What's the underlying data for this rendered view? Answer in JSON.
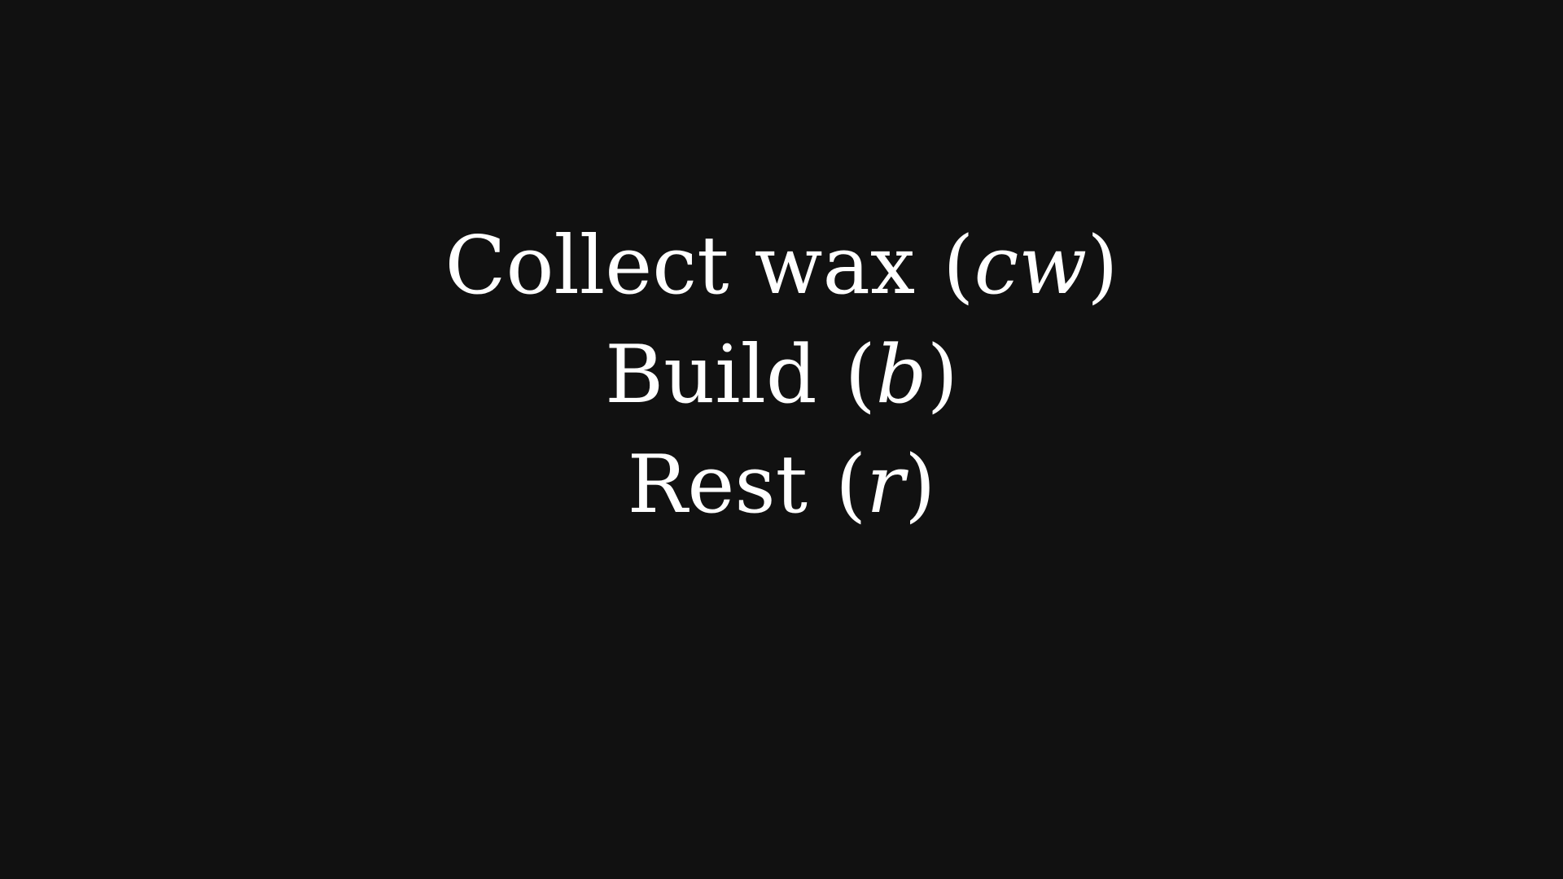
{
  "actions": [
    {
      "label": "Collect wax",
      "symbol": "cw"
    },
    {
      "label": "Build",
      "symbol": "b"
    },
    {
      "label": "Rest",
      "symbol": "r"
    }
  ],
  "punctuation": {
    "open": "(",
    "close": ")"
  },
  "colors": {
    "background": "#111111",
    "text": "#ffffff"
  }
}
